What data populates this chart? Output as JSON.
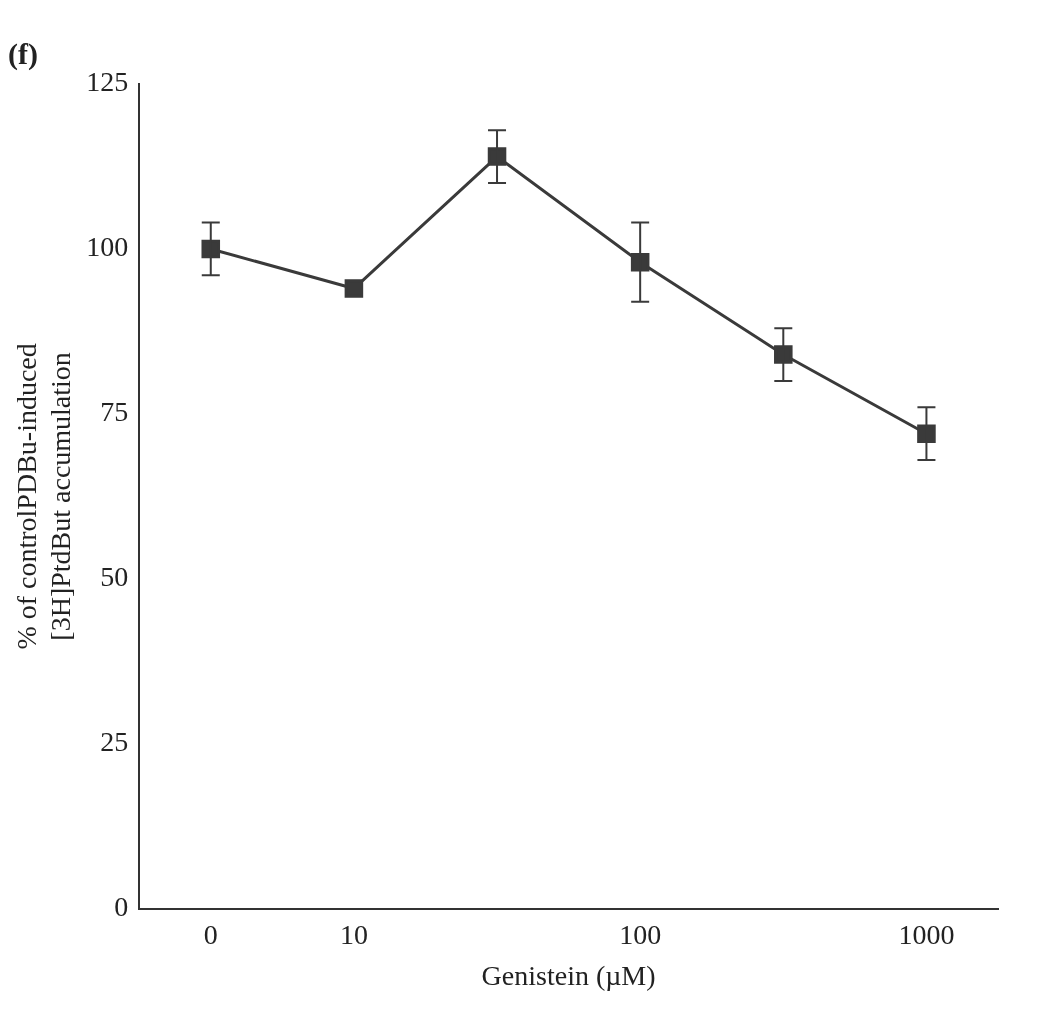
{
  "chart_data": {
    "type": "line",
    "title": "(f)",
    "xlabel": "Genistein (µM)",
    "ylabel": "% of controlPDBu-induced\n[3H]PtdBut accumulation",
    "categories": [
      "0",
      "10",
      null,
      "100",
      null,
      "1000"
    ],
    "series": [
      {
        "color": "#3a3a3a",
        "values": [
          100,
          94,
          114,
          98,
          84,
          72
        ],
        "errors": [
          4,
          null,
          4,
          6,
          4,
          4
        ]
      }
    ],
    "ylim": [
      0,
      125
    ],
    "yticks": [
      0,
      25,
      50,
      75,
      100,
      125
    ],
    "grid": false,
    "legend": false,
    "marker": "square",
    "line_style": "solid"
  }
}
